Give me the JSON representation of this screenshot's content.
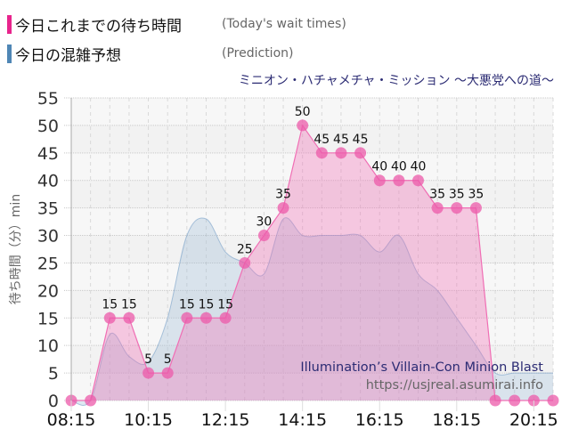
{
  "legend": {
    "items": [
      {
        "label_jp": "今日これまでの待ち時間",
        "label_en": "(Today's wait times)",
        "color": "#e8248c"
      },
      {
        "label_jp": "今日の混雑予想",
        "label_en": "(Prediction)",
        "color": "#4f86b5"
      }
    ]
  },
  "subtitle": "ミニオン・ハチャメチャ・ミッション ～大悪党への道～",
  "watermark": {
    "title": "Illumination’s Villain-Con Minion Blast",
    "url": "https://usjreal.asumirai.info"
  },
  "chart_data": {
    "type": "area",
    "title": "ミニオン・ハチャメチャ・ミッション ～大悪党への道～",
    "xlabel": "",
    "ylabel": "待ち時間（分）min",
    "ylim": [
      0,
      55
    ],
    "yticks": [
      0,
      5,
      10,
      15,
      20,
      25,
      30,
      35,
      40,
      45,
      50,
      55
    ],
    "xticks": [
      "08:15",
      "10:15",
      "12:15",
      "14:15",
      "16:15",
      "18:15",
      "20:15"
    ],
    "grid": true,
    "x": [
      "08:15",
      "08:45",
      "09:15",
      "09:45",
      "10:15",
      "10:45",
      "11:15",
      "11:45",
      "12:15",
      "12:45",
      "13:15",
      "13:45",
      "14:15",
      "14:45",
      "15:15",
      "15:45",
      "16:15",
      "16:45",
      "17:15",
      "17:45",
      "18:15",
      "18:45",
      "19:15",
      "19:45",
      "20:15",
      "20:45"
    ],
    "series": [
      {
        "name": "今日これまでの待ち時間 (Today's wait times)",
        "color": "#f06eb4",
        "values": [
          0,
          0,
          15,
          15,
          5,
          5,
          15,
          15,
          15,
          25,
          30,
          35,
          50,
          45,
          45,
          45,
          40,
          40,
          40,
          35,
          35,
          35,
          0,
          0,
          0,
          0
        ],
        "data_labels": [
          null,
          null,
          "15",
          "15",
          "5",
          "5",
          "15",
          "15",
          "15",
          "25",
          "30",
          "35",
          "50",
          "45",
          "45",
          "45",
          "40",
          "40",
          "40",
          "35",
          "35",
          "35",
          null,
          null,
          null,
          null
        ]
      },
      {
        "name": "今日の混雑予想 (Prediction)",
        "color": "#9fb9d2",
        "values": [
          0,
          0,
          12,
          8,
          7,
          15,
          30,
          33,
          27,
          25,
          23,
          33,
          30,
          30,
          30,
          30,
          27,
          30,
          23,
          20,
          15,
          10,
          5,
          5,
          5,
          5
        ]
      }
    ]
  }
}
